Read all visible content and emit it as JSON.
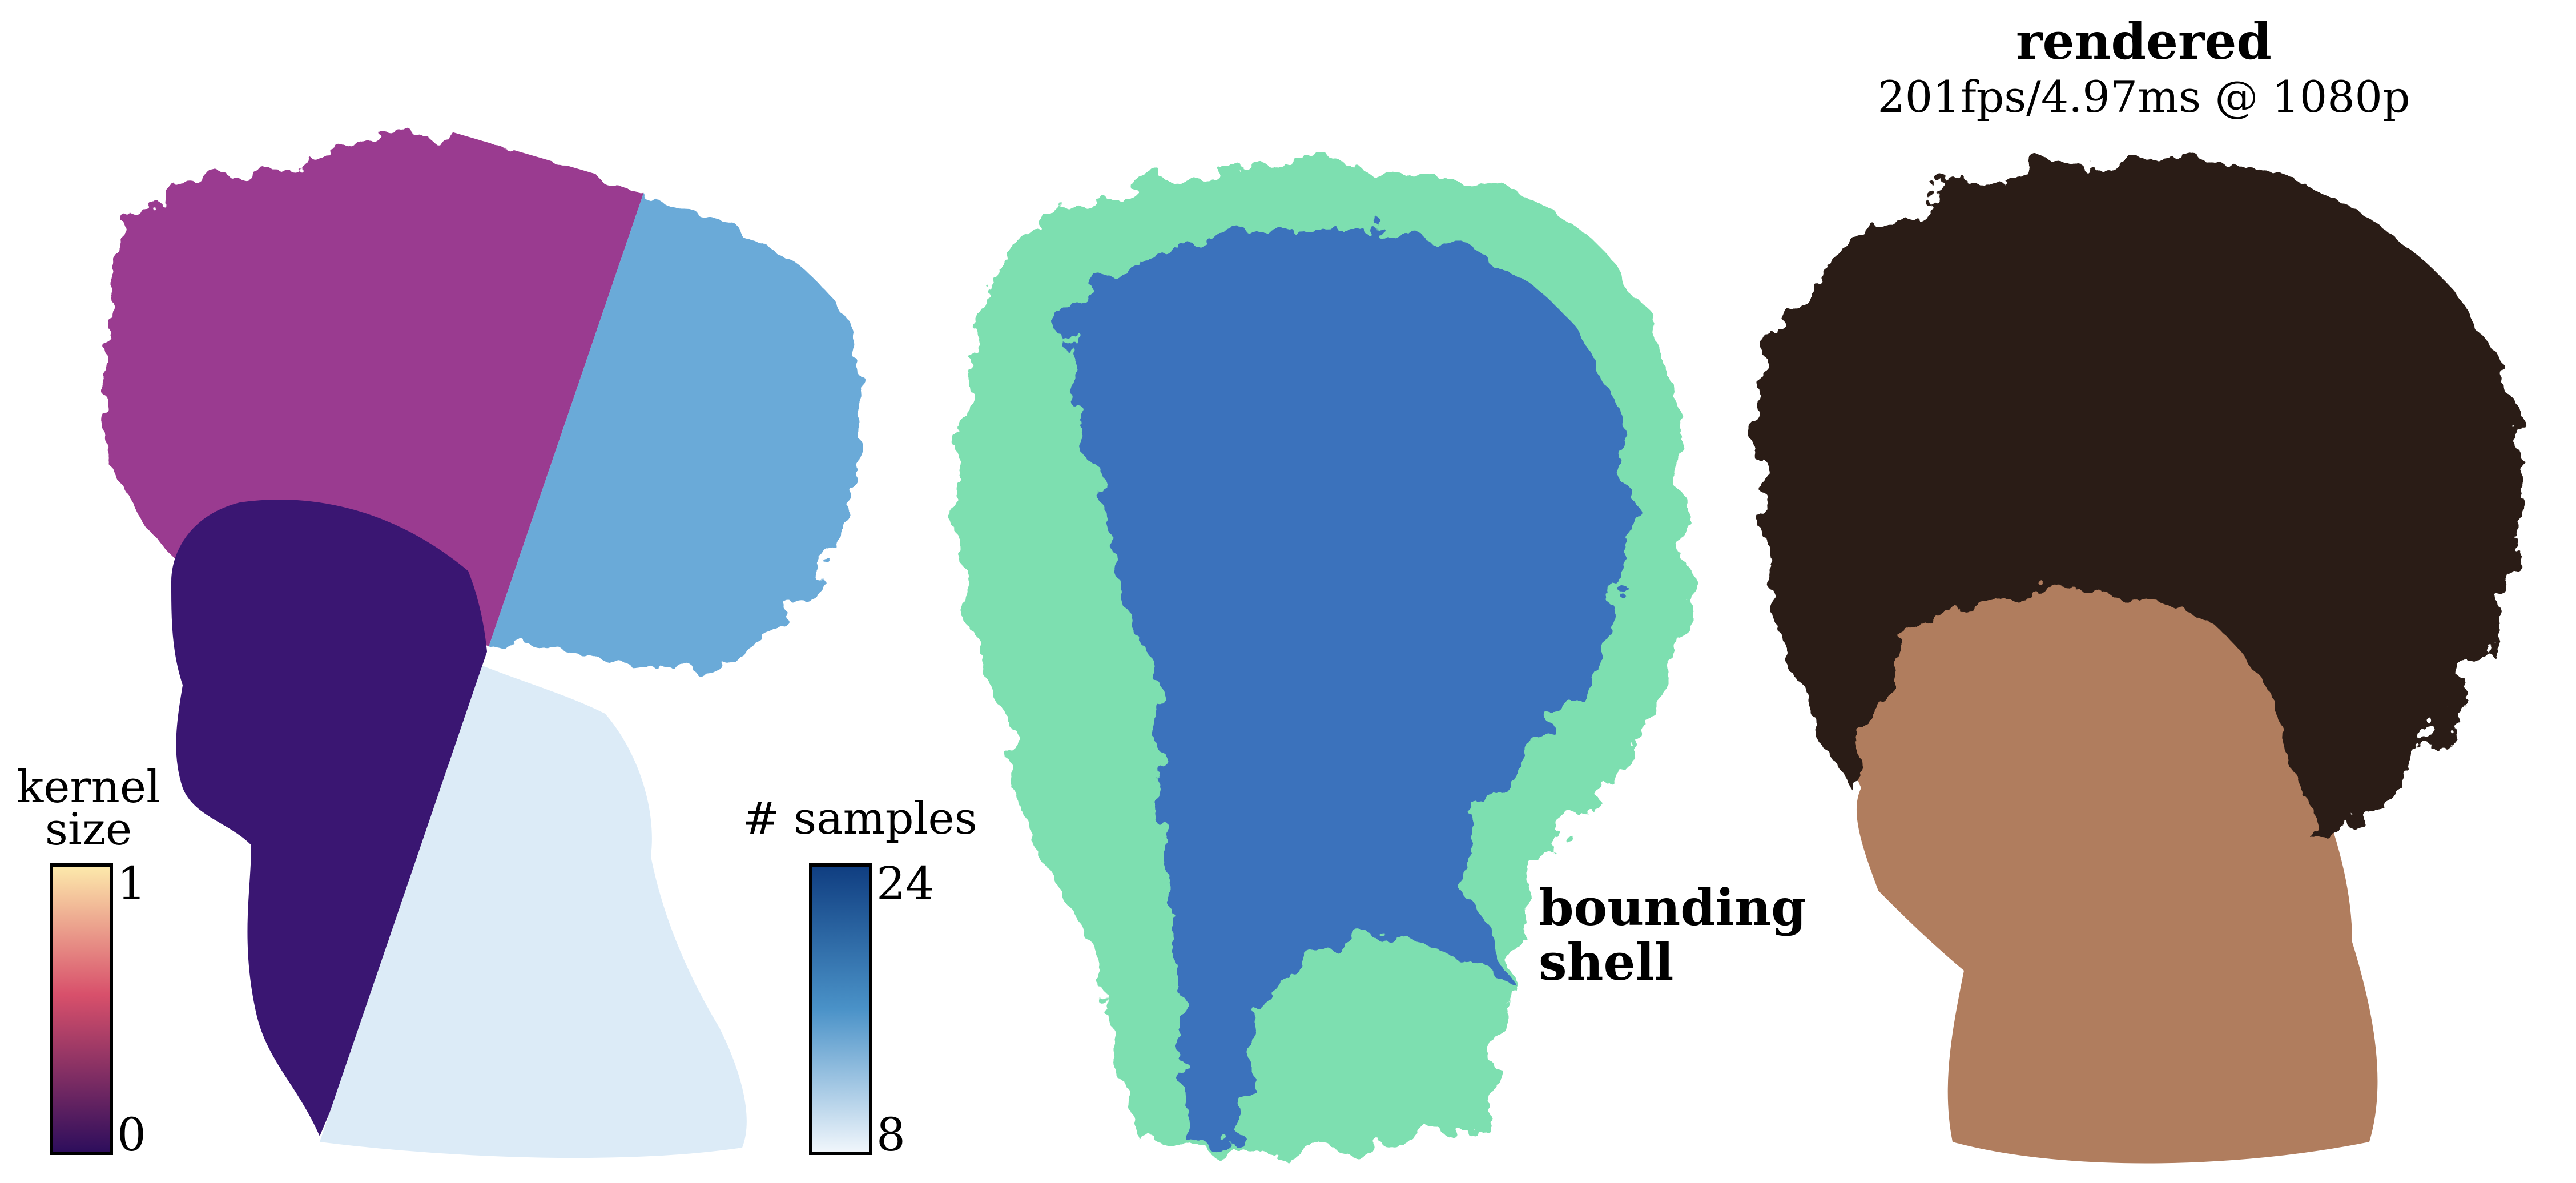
{
  "figure": {
    "left_panel": {
      "kernel_legend": {
        "title_line1": "kernel",
        "title_line2": "size",
        "max_label": "1",
        "min_label": "0",
        "gradient_top": "#fdebac",
        "gradient_mid": "#d8506b",
        "gradient_bottom": "#2c0d5c"
      },
      "samples_legend": {
        "title": "# samples",
        "max_label": "24",
        "min_label": "8",
        "gradient_top": "#0f3d80",
        "gradient_mid": "#4a92c8",
        "gradient_bottom": "#f2f7fc"
      },
      "colors": {
        "kernel_hair": "#9a3a90",
        "kernel_face": "#3a1672",
        "samples_hair": "#6aaad8",
        "samples_face": "#dcebf7"
      }
    },
    "middle_panel": {
      "label_line1": "bounding",
      "label_line2": "shell",
      "colors": {
        "shell": "#7ddfb0",
        "inner": "#3a72bc"
      }
    },
    "right_panel": {
      "title": "rendered",
      "subtitle": "201fps/4.97ms @ 1080p",
      "colors": {
        "hair": "#2b1d16",
        "skin": "#b07d5e"
      }
    }
  }
}
